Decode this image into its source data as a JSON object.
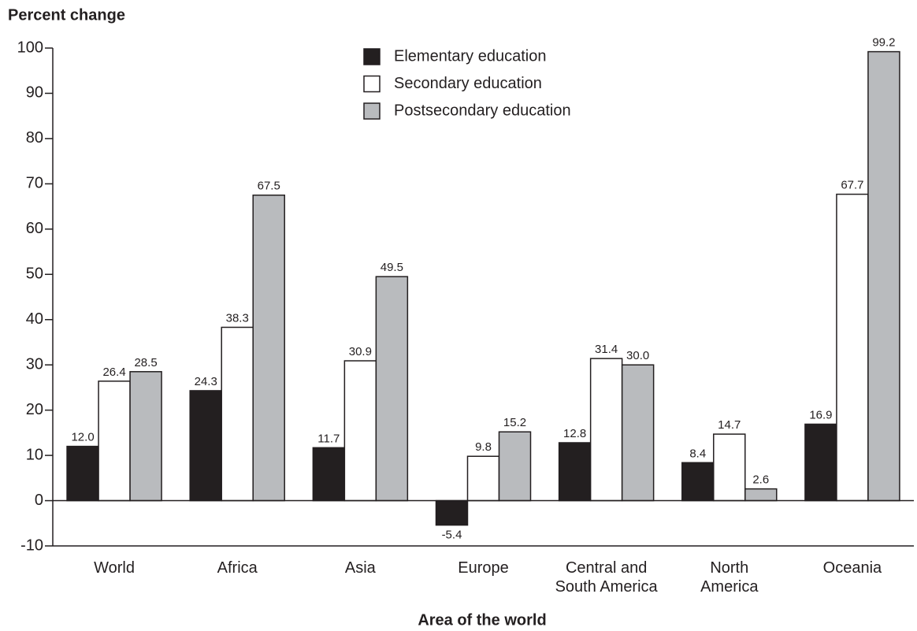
{
  "chart_data": {
    "type": "bar",
    "y_label": "Percent change",
    "x_label": "Area of the world",
    "categories": [
      "World",
      "Africa",
      "Asia",
      "Europe",
      "Central and\nSouth America",
      "North\nAmerica",
      "Oceania"
    ],
    "series": [
      {
        "name": "Elementary education",
        "color": "#231f20",
        "values": [
          12.0,
          24.3,
          11.7,
          -5.4,
          12.8,
          8.4,
          16.9
        ],
        "value_labels": [
          "12.0",
          "24.3",
          "11.7",
          "-5.4",
          "12.8",
          "8.4",
          "16.9"
        ]
      },
      {
        "name": "Secondary education",
        "color": "#ffffff",
        "values": [
          26.4,
          38.3,
          30.9,
          9.8,
          31.4,
          14.7,
          67.7
        ],
        "value_labels": [
          "26.4",
          "38.3",
          "30.9",
          "9.8",
          "31.4",
          "14.7",
          "67.7"
        ]
      },
      {
        "name": "Postsecondary education",
        "color": "#b9bbbe",
        "values": [
          28.5,
          67.5,
          49.5,
          15.2,
          30.0,
          2.6,
          99.2
        ],
        "value_labels": [
          "28.5",
          "67.5",
          "49.5",
          "15.2",
          "30.0",
          "2.6",
          "99.2"
        ]
      }
    ],
    "ylim": [
      -10,
      100
    ],
    "yticks": [
      -10,
      0,
      10,
      20,
      30,
      40,
      50,
      60,
      70,
      80,
      90,
      100
    ],
    "legend": "top",
    "grid": false
  }
}
